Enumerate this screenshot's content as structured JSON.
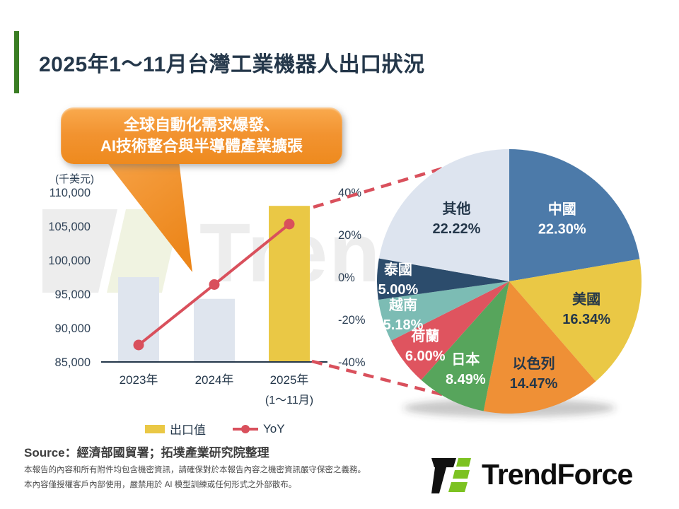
{
  "page": {
    "title": "2025年1～11月台灣工業機器人出口狀況",
    "callout": {
      "line1": "全球自動化需求爆發、",
      "line2": "AI技術整合與半導體產業擴張"
    },
    "source": {
      "prefix": "Source",
      "text": "：經濟部國貿署；拓墣產業研究院整理"
    },
    "disclaimer": [
      "本報告的內容和所有附件均包含機密資訊，請確保對於本報告內容之機密資訊嚴守保密之義務。",
      "本內容僅授權客戶內部使用，嚴禁用於 AI 模型訓練或任何形式之外部散布。"
    ],
    "brand": {
      "name": "TrendForce"
    },
    "watermark_text": "Trend"
  },
  "legend": [
    {
      "label": "出口值",
      "type": "swatch",
      "color": "#eac845"
    },
    {
      "label": "YoY",
      "type": "line",
      "color": "#d9505c"
    }
  ],
  "colors": {
    "title_navy": "#24374a",
    "accent_green": "#3a7d23",
    "callout_orange": "#f0891f",
    "bar_gray": "#dfe5ee",
    "bar_yellow": "#eac845",
    "line_red": "#d9505c",
    "axis_navy": "#2e4156"
  },
  "chart_data": [
    {
      "type": "bar",
      "title": "台灣工業機器人出口值與年增率(YoY)",
      "unit_label": "(千美元)",
      "categories": [
        "2023年",
        "2024年",
        "2025年"
      ],
      "category_sub": [
        "",
        "",
        "(1～11月)"
      ],
      "series": [
        {
          "name": "出口值",
          "kind": "bar",
          "axis": "left",
          "values": [
            97500,
            94300,
            108000
          ],
          "colors": [
            "#dfe5ee",
            "#dfe5ee",
            "#eac845"
          ],
          "note": "values in 千美元, estimated from axis gridlines"
        },
        {
          "name": "YoY",
          "kind": "line",
          "axis": "right",
          "values": [
            -32,
            -3.5,
            25
          ],
          "color": "#d9505c",
          "note": "percent, estimated from axis gridlines"
        }
      ],
      "left_axis": {
        "ticks": [
          "110,000",
          "105,000",
          "100,000",
          "95,000",
          "90,000",
          "85,000"
        ],
        "min": 85000,
        "max": 110000
      },
      "right_axis": {
        "ticks": [
          "40%",
          "20%",
          "0%",
          "-20%",
          "-40%"
        ],
        "min": -40,
        "max": 40
      },
      "grid": false,
      "legend_position": "bottom"
    },
    {
      "type": "pie",
      "title": "2025年1～11月台灣工業機器人出口市場占比",
      "start_angle_deg": 0,
      "direction": "clockwise",
      "slices": [
        {
          "label": "中國",
          "value": 22.3,
          "display": "22.30%",
          "color": "#4c7aa9",
          "label_color": "#ffffff"
        },
        {
          "label": "美國",
          "value": 16.34,
          "display": "16.34%",
          "color": "#eac845",
          "label_color": "#24374a"
        },
        {
          "label": "以色列",
          "value": 14.47,
          "display": "14.47%",
          "color": "#ef9036",
          "label_color": "#24374a"
        },
        {
          "label": "日本",
          "value": 8.49,
          "display": "8.49%",
          "color": "#57a55c",
          "label_color": "#ffffff"
        },
        {
          "label": "荷蘭",
          "value": 6.0,
          "display": "6.00%",
          "color": "#df545f",
          "label_color": "#ffffff"
        },
        {
          "label": "越南",
          "value": 5.18,
          "display": "5.18%",
          "color": "#7cbcb4",
          "label_color": "#ffffff"
        },
        {
          "label": "泰國",
          "value": 5.0,
          "display": "5.00%",
          "color": "#2c4c6c",
          "label_color": "#ffffff"
        },
        {
          "label": "其他",
          "value": 22.22,
          "display": "22.22%",
          "color": "#dde4ef",
          "label_color": "#24374a"
        }
      ]
    }
  ]
}
